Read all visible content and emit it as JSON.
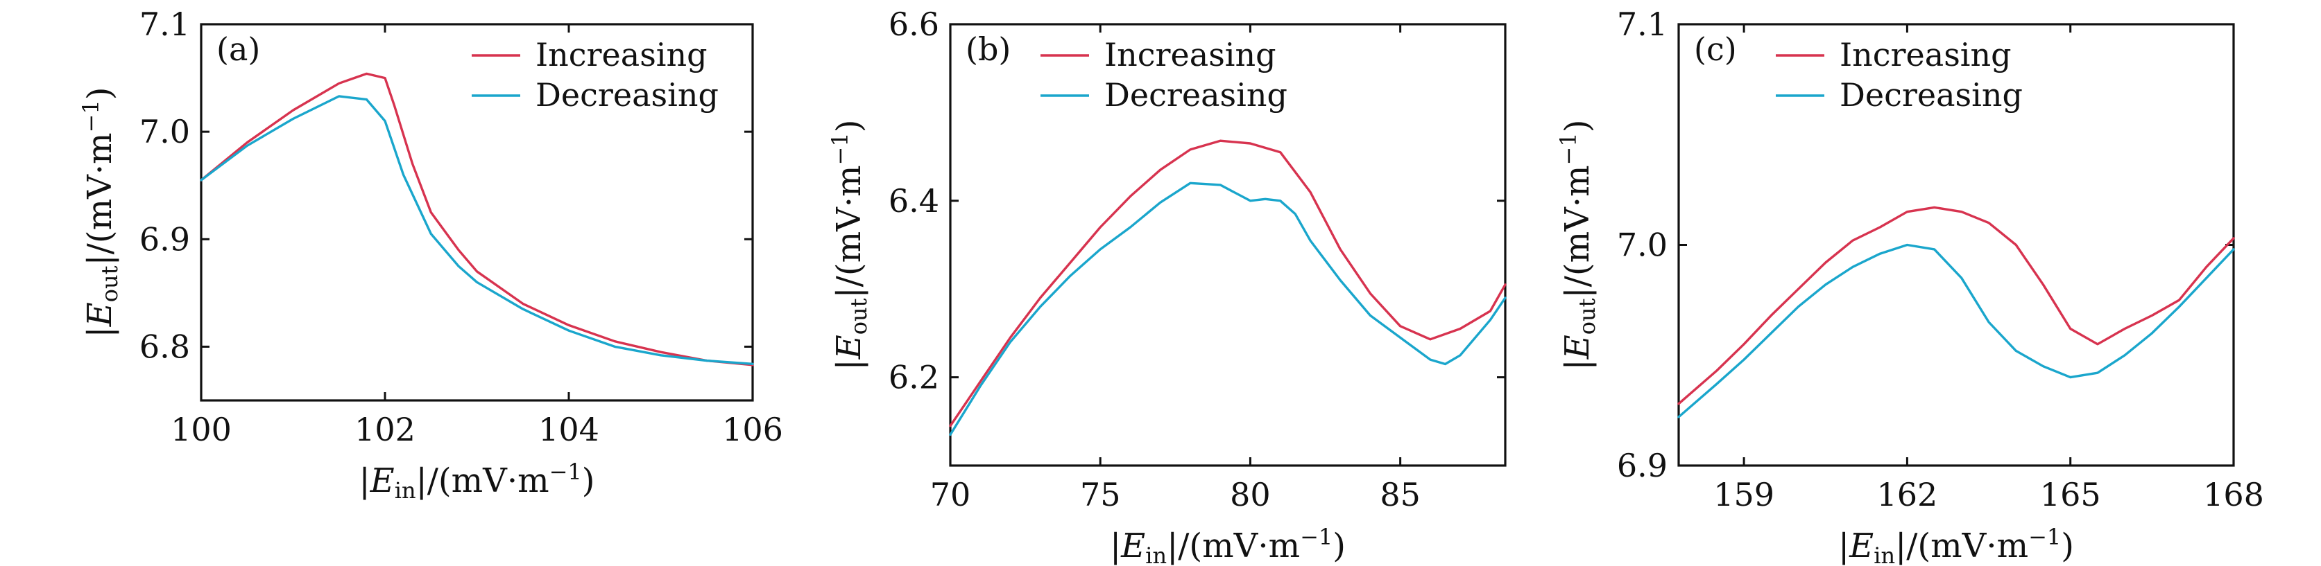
{
  "colors": {
    "increasing": "#d7334f",
    "decreasing": "#1aa6cc"
  },
  "chart_data": [
    {
      "type": "line",
      "panel_label": "(a)",
      "xlabel": "|E_in|/(mV·m^-1)",
      "ylabel": "|E_out|/(mV·m^-1)",
      "xlim": [
        100,
        106
      ],
      "ylim": [
        6.75,
        7.1
      ],
      "xticks": [
        100,
        102,
        104,
        106
      ],
      "xtick_labels": [
        "100",
        "102",
        "104",
        "106"
      ],
      "yticks": [
        6.8,
        6.9,
        7.0,
        7.1
      ],
      "ytick_labels": [
        "6.8",
        "6.9",
        "7.0",
        "7.1"
      ],
      "legend_position": "top-right",
      "series": [
        {
          "name": "Increasing",
          "color_key": "increasing",
          "x": [
            100,
            100.5,
            101,
            101.5,
            101.8,
            102,
            102.1,
            102.3,
            102.5,
            102.8,
            103,
            103.5,
            104,
            104.5,
            105,
            105.5,
            106
          ],
          "y": [
            6.955,
            6.99,
            7.02,
            7.045,
            7.054,
            7.05,
            7.025,
            6.97,
            6.925,
            6.89,
            6.87,
            6.84,
            6.82,
            6.805,
            6.795,
            6.787,
            6.783
          ]
        },
        {
          "name": "Decreasing",
          "color_key": "decreasing",
          "x": [
            100,
            100.5,
            101,
            101.5,
            101.8,
            102,
            102.2,
            102.5,
            102.8,
            103,
            103.5,
            104,
            104.5,
            105,
            105.5,
            106
          ],
          "y": [
            6.955,
            6.987,
            7.012,
            7.033,
            7.03,
            7.01,
            6.96,
            6.905,
            6.875,
            6.86,
            6.835,
            6.815,
            6.8,
            6.792,
            6.787,
            6.784
          ]
        }
      ]
    },
    {
      "type": "line",
      "panel_label": "(b)",
      "xlabel": "|E_in|/(mV·m^-1)",
      "ylabel": "|E_out|/(mV·m^-1)",
      "xlim": [
        70,
        88.5
      ],
      "ylim": [
        6.1,
        6.6
      ],
      "xticks": [
        70,
        75,
        80,
        85
      ],
      "xtick_labels": [
        "70",
        "75",
        "80",
        "85"
      ],
      "yticks": [
        6.2,
        6.4,
        6.6
      ],
      "ytick_labels": [
        "6.2",
        "6.4",
        "6.6"
      ],
      "legend_position": "top-right",
      "series": [
        {
          "name": "Increasing",
          "color_key": "increasing",
          "x": [
            70,
            71,
            72,
            73,
            74,
            75,
            76,
            77,
            78,
            79,
            80,
            81,
            82,
            83,
            84,
            85,
            86,
            87,
            88,
            88.5
          ],
          "y": [
            6.145,
            6.195,
            6.245,
            6.29,
            6.33,
            6.37,
            6.405,
            6.435,
            6.458,
            6.468,
            6.465,
            6.455,
            6.41,
            6.345,
            6.295,
            6.258,
            6.243,
            6.255,
            6.275,
            6.305
          ]
        },
        {
          "name": "Decreasing",
          "color_key": "decreasing",
          "x": [
            70,
            71,
            72,
            73,
            74,
            75,
            76,
            77,
            78,
            79,
            80,
            80.5,
            81,
            81.5,
            82,
            83,
            84,
            85,
            86,
            86.5,
            87,
            88,
            88.5
          ],
          "y": [
            6.135,
            6.19,
            6.24,
            6.28,
            6.315,
            6.345,
            6.37,
            6.398,
            6.42,
            6.418,
            6.4,
            6.402,
            6.4,
            6.385,
            6.355,
            6.31,
            6.27,
            6.245,
            6.22,
            6.215,
            6.225,
            6.265,
            6.29
          ]
        }
      ]
    },
    {
      "type": "line",
      "panel_label": "(c)",
      "xlabel": "|E_in|/(mV·m^-1)",
      "ylabel": "|E_out|/(mV·m^-1)",
      "xlim": [
        157.8,
        168
      ],
      "ylim": [
        6.9,
        7.1
      ],
      "xticks": [
        159,
        162,
        165,
        168
      ],
      "xtick_labels": [
        "159",
        "162",
        "165",
        "168"
      ],
      "yticks": [
        6.9,
        7.0,
        7.1
      ],
      "ytick_labels": [
        "6.9",
        "7.0",
        "7.1"
      ],
      "legend_position": "top-left",
      "series": [
        {
          "name": "Increasing",
          "color_key": "increasing",
          "x": [
            157.8,
            158.5,
            159,
            159.5,
            160,
            160.5,
            161,
            161.5,
            162,
            162.5,
            163,
            163.5,
            164,
            164.5,
            165,
            165.5,
            166,
            166.5,
            167,
            167.5,
            168
          ],
          "y": [
            6.928,
            6.943,
            6.955,
            6.968,
            6.98,
            6.992,
            7.002,
            7.008,
            7.015,
            7.017,
            7.015,
            7.01,
            7.0,
            6.982,
            6.962,
            6.955,
            6.962,
            6.968,
            6.975,
            6.99,
            7.003
          ]
        },
        {
          "name": "Decreasing",
          "color_key": "decreasing",
          "x": [
            157.8,
            158.5,
            159,
            159.5,
            160,
            160.5,
            161,
            161.5,
            162,
            162.5,
            163,
            163.5,
            164,
            164.5,
            165,
            165.5,
            166,
            166.5,
            167,
            167.5,
            168
          ],
          "y": [
            6.922,
            6.937,
            6.948,
            6.96,
            6.972,
            6.982,
            6.99,
            6.996,
            7.0,
            6.998,
            6.985,
            6.965,
            6.952,
            6.945,
            6.94,
            6.942,
            6.95,
            6.96,
            6.972,
            6.985,
            6.998
          ]
        }
      ]
    }
  ]
}
